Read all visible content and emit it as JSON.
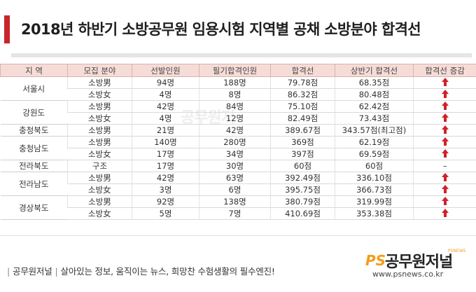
{
  "title": "2018년 하반기 소방공무원 임용시험 지역별 공채 소방분야 합격선",
  "table": {
    "headers": [
      "지 역",
      "모집 분야",
      "선발인원",
      "필기합격인원",
      "합격선",
      "상반기 합격선",
      "합격선 증감"
    ],
    "groups": [
      {
        "region": "서울시",
        "rows": [
          {
            "field": "소방男",
            "selected": "94명",
            "passed": "188명",
            "cutoff": "79.78점",
            "first_half": "68.35점",
            "change": "up"
          },
          {
            "field": "소방女",
            "selected": "4명",
            "passed": "8명",
            "cutoff": "86.32점",
            "first_half": "80.48점",
            "change": "up"
          }
        ]
      },
      {
        "region": "강원도",
        "rows": [
          {
            "field": "소방男",
            "selected": "42명",
            "passed": "84명",
            "cutoff": "75.10점",
            "first_half": "62.42점",
            "change": "up"
          },
          {
            "field": "소방女",
            "selected": "4명",
            "passed": "12명",
            "cutoff": "82.49점",
            "first_half": "73.43점",
            "change": "up"
          }
        ]
      },
      {
        "region": "충청북도",
        "rows": [
          {
            "field": "소방男",
            "selected": "21명",
            "passed": "42명",
            "cutoff": "389.67점",
            "first_half": "343.57점(최고점)",
            "change": "up"
          }
        ]
      },
      {
        "region": "충청남도",
        "rows": [
          {
            "field": "소방男",
            "selected": "140명",
            "passed": "280명",
            "cutoff": "369점",
            "first_half": "62.19점",
            "change": "up"
          },
          {
            "field": "소방女",
            "selected": "17명",
            "passed": "34명",
            "cutoff": "397점",
            "first_half": "69.59점",
            "change": "up"
          }
        ]
      },
      {
        "region": "전라북도",
        "rows": [
          {
            "field": "구조",
            "selected": "17명",
            "passed": "30명",
            "cutoff": "60점",
            "first_half": "60점",
            "change": "–"
          }
        ]
      },
      {
        "region": "전라남도",
        "rows": [
          {
            "field": "소방男",
            "selected": "42명",
            "passed": "63명",
            "cutoff": "392.49점",
            "first_half": "336.10점",
            "change": "up"
          },
          {
            "field": "소방女",
            "selected": "3명",
            "passed": "6명",
            "cutoff": "395.75점",
            "first_half": "366.73점",
            "change": "up"
          }
        ]
      },
      {
        "region": "경상북도",
        "rows": [
          {
            "field": "소방男",
            "selected": "92명",
            "passed": "138명",
            "cutoff": "380.79점",
            "first_half": "319.99점",
            "change": "up"
          },
          {
            "field": "소방女",
            "selected": "5명",
            "passed": "7명",
            "cutoff": "410.69점",
            "first_half": "353.38점",
            "change": "up"
          }
        ]
      }
    ]
  },
  "footer": {
    "brand": "공무원저널",
    "slogan": "살아있는 정보, 움직이는 뉴스, 희망찬 수험생활의 필수엔진!"
  },
  "logo": {
    "ps": "PS",
    "name": "공무원저널",
    "tag": "PSNEWS",
    "url": "www.psnews.co.kr"
  },
  "colors": {
    "accent": "#c9242b",
    "header_bg": "#f6dcd7",
    "up_arrow": "#d0202a",
    "logo_orange": "#f39c1c"
  },
  "icons": {
    "up": "up-arrow-icon"
  }
}
